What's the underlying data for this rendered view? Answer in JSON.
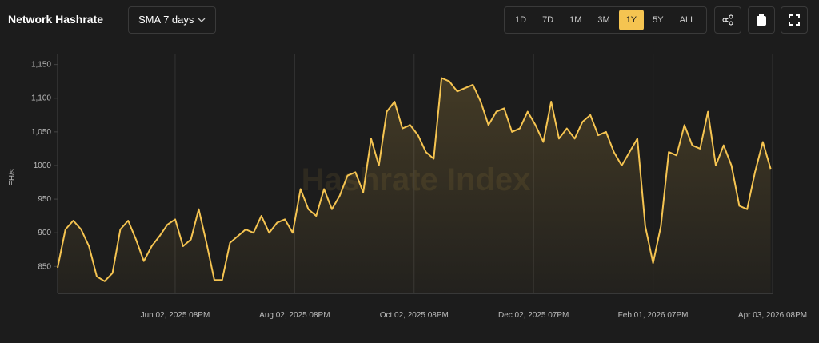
{
  "header": {
    "title": "Network Hashrate",
    "smoothing": "SMA 7 days",
    "ranges": [
      "1D",
      "7D",
      "1M",
      "3M",
      "1Y",
      "5Y",
      "ALL"
    ],
    "active_range": "1Y"
  },
  "chart_data": {
    "type": "line",
    "ylabel": "EH/s",
    "watermark": "Hashrate Index",
    "x": [
      "2025-04-03",
      "2025-04-07",
      "2025-04-11",
      "2025-04-15",
      "2025-04-19",
      "2025-04-23",
      "2025-04-27",
      "2025-05-01",
      "2025-05-05",
      "2025-05-09",
      "2025-05-13",
      "2025-05-17",
      "2025-05-21",
      "2025-05-25",
      "2025-05-29",
      "2025-06-02",
      "2025-06-06",
      "2025-06-10",
      "2025-06-14",
      "2025-06-18",
      "2025-06-22",
      "2025-06-26",
      "2025-06-30",
      "2025-07-04",
      "2025-07-08",
      "2025-07-12",
      "2025-07-16",
      "2025-07-20",
      "2025-07-24",
      "2025-07-28",
      "2025-08-01",
      "2025-08-05",
      "2025-08-09",
      "2025-08-13",
      "2025-08-17",
      "2025-08-21",
      "2025-08-25",
      "2025-08-29",
      "2025-09-02",
      "2025-09-06",
      "2025-09-10",
      "2025-09-14",
      "2025-09-18",
      "2025-09-22",
      "2025-09-26",
      "2025-09-30",
      "2025-10-04",
      "2025-10-08",
      "2025-10-12",
      "2025-10-16",
      "2025-10-20",
      "2025-10-24",
      "2025-10-28",
      "2025-11-01",
      "2025-11-05",
      "2025-11-09",
      "2025-11-13",
      "2025-11-17",
      "2025-11-21",
      "2025-11-25",
      "2025-11-29",
      "2025-12-03",
      "2025-12-07",
      "2025-12-11",
      "2025-12-15",
      "2025-12-19",
      "2025-12-23",
      "2025-12-27",
      "2025-12-31",
      "2026-01-04",
      "2026-01-08",
      "2026-01-12",
      "2026-01-16",
      "2026-01-20",
      "2026-01-24",
      "2026-01-28",
      "2026-02-01",
      "2026-02-05",
      "2026-02-09",
      "2026-02-13",
      "2026-02-17",
      "2026-02-21",
      "2026-02-25",
      "2026-03-01",
      "2026-03-05",
      "2026-03-09",
      "2026-03-13",
      "2026-03-17",
      "2026-03-21",
      "2026-03-25",
      "2026-03-29",
      "2026-04-02"
    ],
    "series": [
      {
        "name": "Hashrate",
        "color": "#f5c451",
        "values": [
          848,
          905,
          918,
          905,
          880,
          835,
          828,
          840,
          905,
          918,
          890,
          858,
          880,
          895,
          912,
          920,
          880,
          890,
          935,
          885,
          830,
          830,
          885,
          895,
          905,
          900,
          925,
          900,
          915,
          920,
          900,
          965,
          935,
          925,
          965,
          935,
          955,
          985,
          990,
          960,
          1040,
          1000,
          1080,
          1095,
          1055,
          1060,
          1045,
          1020,
          1010,
          1130,
          1125,
          1110,
          1115,
          1120,
          1095,
          1060,
          1080,
          1085,
          1050,
          1055,
          1080,
          1060,
          1035,
          1095,
          1040,
          1055,
          1040,
          1065,
          1075,
          1045,
          1050,
          1020,
          1000,
          1020,
          1040,
          910,
          855,
          910,
          1020,
          1015,
          1060,
          1030,
          1025,
          1080,
          1000,
          1030,
          1000,
          940,
          935,
          990,
          1035,
          995
        ]
      }
    ],
    "xlim": [
      "2025-04-03",
      "2026-04-03"
    ],
    "xticks": [
      {
        "value": "2025-06-02",
        "label": "Jun 02, 2025 08PM"
      },
      {
        "value": "2025-08-02",
        "label": "Aug 02, 2025 08PM"
      },
      {
        "value": "2025-10-02",
        "label": "Oct 02, 2025 08PM"
      },
      {
        "value": "2025-12-02",
        "label": "Dec 02, 2025 07PM"
      },
      {
        "value": "2026-02-01",
        "label": "Feb 01, 2026 07PM"
      },
      {
        "value": "2026-04-03",
        "label": "Apr 03, 2026 08PM"
      }
    ],
    "ylim": [
      810,
      1165
    ],
    "yticks": [
      850,
      900,
      950,
      1000,
      {
        "value": 1050,
        "label": "1,050"
      },
      {
        "value": 1100,
        "label": "1,100"
      },
      {
        "value": 1150,
        "label": "1,150"
      }
    ],
    "grid": "x"
  }
}
